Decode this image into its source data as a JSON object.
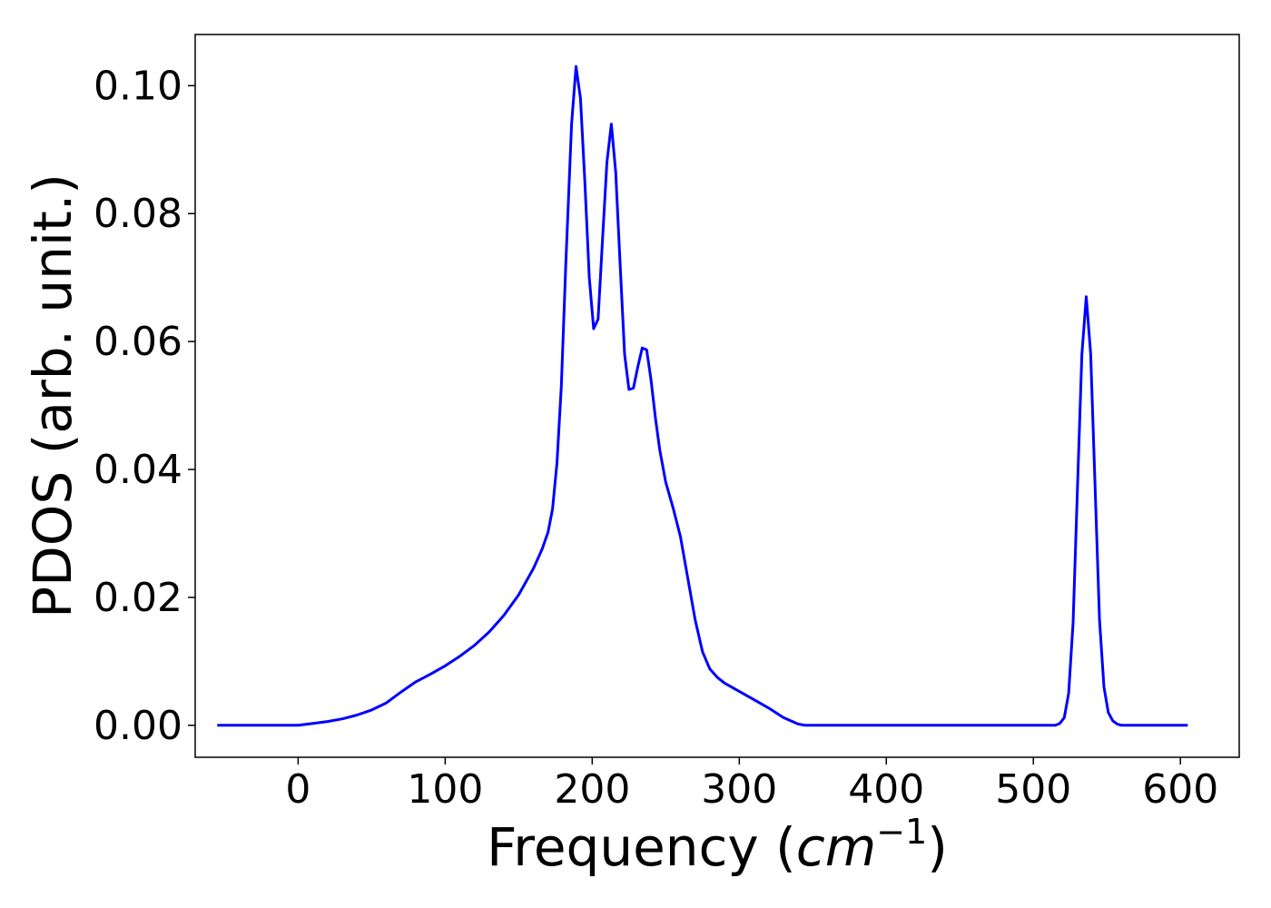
{
  "chart_data": {
    "type": "line",
    "title": "",
    "xlabel": "Frequency (",
    "xlabel_math": "cm",
    "xlabel_exponent": "−1",
    "xlabel_close": ")",
    "ylabel": "PDOS (arb. unit.)",
    "xlim": [
      -70,
      640
    ],
    "ylim": [
      -0.005,
      0.108
    ],
    "xticks": [
      0,
      100,
      200,
      300,
      400,
      500,
      600
    ],
    "xtick_labels": [
      "0",
      "100",
      "200",
      "300",
      "400",
      "500",
      "600"
    ],
    "yticks": [
      0.0,
      0.02,
      0.04,
      0.06,
      0.08,
      0.1
    ],
    "ytick_labels": [
      "0.00",
      "0.02",
      "0.04",
      "0.06",
      "0.08",
      "0.10"
    ],
    "grid": false,
    "legend": "none",
    "series": [
      {
        "color": "#0000ff",
        "x": [
          -55,
          0,
          10,
          20,
          30,
          40,
          50,
          60,
          70,
          80,
          90,
          100,
          110,
          120,
          130,
          140,
          150,
          160,
          166,
          170,
          173,
          176,
          179,
          182,
          186,
          189,
          192,
          195,
          198,
          201,
          204,
          207,
          210,
          213,
          216,
          219,
          222,
          225,
          228,
          231,
          234,
          237,
          240,
          243,
          246,
          250,
          255,
          260,
          265,
          270,
          275,
          280,
          285,
          290,
          300,
          310,
          320,
          330,
          340,
          345,
          350,
          400,
          450,
          500,
          515,
          518,
          521,
          524,
          527,
          530,
          533,
          536,
          539,
          542,
          545,
          548,
          551,
          554,
          557,
          560,
          565,
          605
        ],
        "y": [
          0.0,
          0.0,
          0.0003,
          0.0006,
          0.001,
          0.0016,
          0.0024,
          0.0035,
          0.0052,
          0.0068,
          0.008,
          0.0093,
          0.0108,
          0.0125,
          0.0146,
          0.0172,
          0.0204,
          0.0245,
          0.0276,
          0.0302,
          0.0338,
          0.041,
          0.053,
          0.072,
          0.094,
          0.103,
          0.098,
          0.085,
          0.07,
          0.062,
          0.0635,
          0.076,
          0.088,
          0.094,
          0.0865,
          0.072,
          0.058,
          0.0525,
          0.0527,
          0.056,
          0.059,
          0.0587,
          0.054,
          0.048,
          0.043,
          0.038,
          0.034,
          0.0295,
          0.023,
          0.0165,
          0.0115,
          0.0088,
          0.0075,
          0.0066,
          0.0053,
          0.004,
          0.0027,
          0.0012,
          0.0002,
          0.0,
          0.0,
          0.0,
          0.0,
          0.0,
          0.0,
          0.0003,
          0.0012,
          0.005,
          0.016,
          0.037,
          0.058,
          0.067,
          0.058,
          0.037,
          0.0165,
          0.006,
          0.002,
          0.0007,
          0.0002,
          0.0,
          0.0,
          0.0
        ]
      }
    ]
  }
}
